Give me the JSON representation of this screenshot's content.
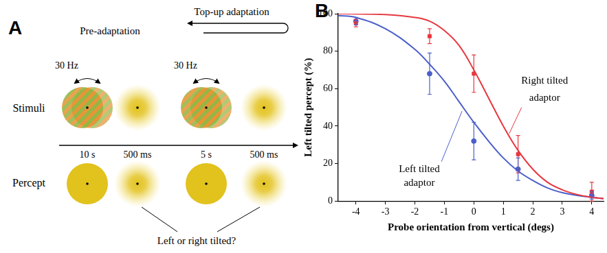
{
  "diagram": {
    "panel_label": "A",
    "phases": [
      "Pre-adaptation",
      "Top-up adaptation"
    ],
    "rows": [
      "Stimuli",
      "Percept"
    ],
    "frequency_labels": [
      "30 Hz",
      "30 Hz"
    ],
    "durations": [
      "10 s",
      "500 ms",
      "5 s",
      "500 ms"
    ],
    "question": "Left or right tilted?"
  },
  "chart_data": {
    "type": "line",
    "panel_label": "B",
    "x_label": "Probe orientation from vertical (degs)",
    "y_label": "Left tilted percept (%)",
    "xlim": [
      -4.6,
      4.4
    ],
    "xticks": [
      -4,
      -3,
      -2,
      -1,
      0,
      1,
      2,
      3,
      4
    ],
    "ylim": [
      0,
      100
    ],
    "yticks": [
      0,
      20,
      40,
      60,
      80,
      100
    ],
    "grid": false,
    "series": [
      {
        "name": "Right tilted adaptor",
        "color": "#e8373f",
        "marker": "square",
        "x": [
          -4,
          -1.5,
          0,
          1.5,
          4
        ],
        "values": [
          95,
          88,
          68,
          25,
          5
        ],
        "errors": [
          2,
          4,
          10,
          10,
          5
        ],
        "fit_x": [
          -4.6,
          -4,
          -3,
          -2,
          -1.5,
          -1,
          -0.5,
          0,
          0.5,
          1,
          1.5,
          2,
          2.5,
          3,
          3.5,
          4,
          4.4
        ],
        "fit_values": [
          100,
          99.9,
          99.5,
          98,
          96,
          91,
          83,
          70,
          55,
          40,
          27,
          17,
          10,
          6,
          3.5,
          2,
          1.3
        ]
      },
      {
        "name": "Left tilted adaptor",
        "color": "#4b5fc9",
        "marker": "circle",
        "x": [
          -4,
          -1.5,
          0,
          1.5,
          4
        ],
        "values": [
          96,
          68,
          32,
          17,
          3
        ],
        "errors": [
          2,
          11,
          10,
          6,
          2
        ],
        "fit_x": [
          -4.6,
          -4,
          -3,
          -2,
          -1.5,
          -1,
          -0.5,
          0,
          0.5,
          1,
          1.5,
          2,
          2.5,
          3,
          3.5,
          4,
          4.4
        ],
        "fit_values": [
          99,
          98,
          92,
          81,
          73,
          64,
          53,
          42,
          32,
          23,
          16,
          11,
          7,
          4.5,
          3,
          2,
          1.3
        ]
      }
    ]
  }
}
